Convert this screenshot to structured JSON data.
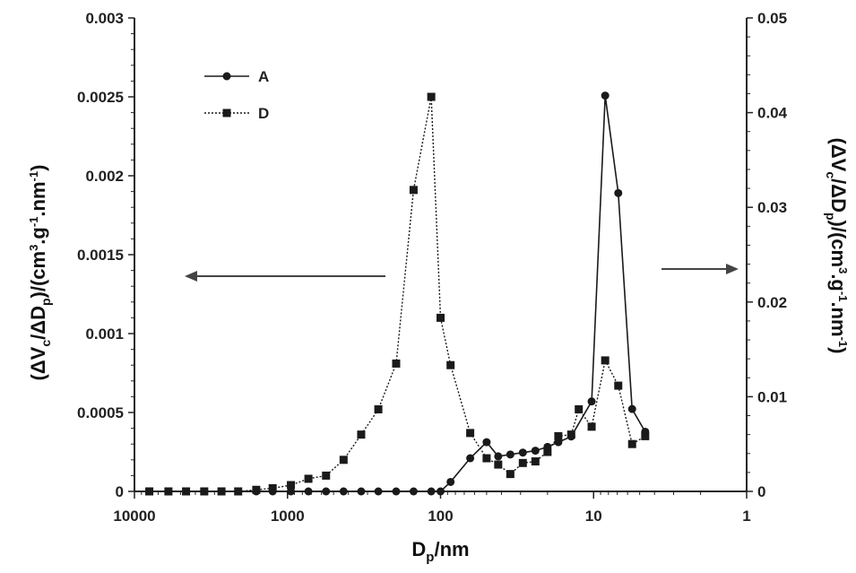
{
  "chart_data": {
    "type": "line",
    "x_axis": {
      "label": "D",
      "label_sub": "p",
      "label_suffix": "/nm",
      "scale": "log",
      "reversed": true,
      "range": [
        10000,
        1
      ],
      "ticks": [
        10000,
        1000,
        100,
        10,
        1
      ],
      "tick_labels": [
        "10000",
        "1000",
        "100",
        "10",
        "1"
      ]
    },
    "y_left": {
      "label_parts": [
        {
          "t": "(ΔV"
        },
        {
          "t": "c",
          "s": "sub"
        },
        {
          "t": "/ΔD"
        },
        {
          "t": "p",
          "s": "sub"
        },
        {
          "t": ")/(cm"
        },
        {
          "t": "3",
          "s": "sup"
        },
        {
          "t": ".g"
        },
        {
          "t": "-1",
          "s": "sup"
        },
        {
          "t": ".nm"
        },
        {
          "t": "-1",
          "s": "sup"
        },
        {
          "t": ")"
        }
      ],
      "range": [
        0,
        0.003
      ],
      "ticks": [
        0,
        0.0005,
        0.001,
        0.0015,
        0.002,
        0.0025,
        0.003
      ],
      "tick_labels": [
        "0",
        "0.0005",
        "0.001",
        "0.0015",
        "0.002",
        "0.0025",
        "0.003"
      ]
    },
    "y_right": {
      "label_parts": [
        {
          "t": "(ΔV"
        },
        {
          "t": "c",
          "s": "sub"
        },
        {
          "t": "/ΔD"
        },
        {
          "t": "p",
          "s": "sub"
        },
        {
          "t": ")/(cm"
        },
        {
          "t": "3",
          "s": "sup"
        },
        {
          "t": ".g"
        },
        {
          "t": "-1",
          "s": "sup"
        },
        {
          "t": ".nm"
        },
        {
          "t": "-1",
          "s": "sup"
        },
        {
          "t": ")"
        }
      ],
      "range": [
        0,
        0.05
      ],
      "ticks": [
        0,
        0.01,
        0.02,
        0.03,
        0.04,
        0.05
      ],
      "tick_labels": [
        "0",
        "0.01",
        "0.02",
        "0.03",
        "0.04",
        "0.05"
      ]
    },
    "legend": {
      "placement": "top-left"
    },
    "grid": false,
    "annotations": [
      {
        "type": "arrow",
        "direction": "left",
        "meaning": "series D uses left axis"
      },
      {
        "type": "arrow",
        "direction": "right",
        "meaning": "series A uses right axis"
      }
    ],
    "series": [
      {
        "name": "A",
        "axis": "right",
        "marker": "circle",
        "line": "solid",
        "color": "#1a1a1a",
        "x": [
          8000,
          6000,
          4600,
          3500,
          2700,
          2100,
          1600,
          1250,
          950,
          730,
          560,
          430,
          330,
          255,
          195,
          150,
          115,
          100,
          86,
          64,
          50,
          42,
          35,
          29,
          24,
          20,
          17,
          14,
          10.3,
          8.4,
          6.9,
          5.6,
          4.6
        ],
        "y": [
          0,
          0,
          0,
          0,
          0,
          0,
          0,
          0,
          0,
          0,
          0,
          0,
          0,
          0,
          0,
          0,
          0,
          0,
          0.001,
          0.0035,
          0.0052,
          0.0037,
          0.0039,
          0.0041,
          0.0043,
          0.0047,
          0.0052,
          0.0058,
          0.0095,
          0.0418,
          0.0315,
          0.0087,
          0.0063
        ]
      },
      {
        "name": "D",
        "axis": "left",
        "marker": "square",
        "line": "dotted",
        "color": "#1a1a1a",
        "x": [
          8000,
          6000,
          4600,
          3500,
          2700,
          2100,
          1600,
          1250,
          950,
          730,
          560,
          430,
          330,
          255,
          195,
          150,
          115,
          100,
          86,
          64,
          50,
          42,
          35,
          29,
          24,
          20,
          17,
          14,
          12.5,
          10.3,
          8.4,
          6.9,
          5.6,
          4.6
        ],
        "y": [
          0,
          0,
          0,
          0,
          0,
          0,
          1e-05,
          2e-05,
          4e-05,
          8e-05,
          0.0001,
          0.0002,
          0.00036,
          0.00052,
          0.00081,
          0.00191,
          0.0025,
          0.0011,
          0.0008,
          0.00037,
          0.00021,
          0.00017,
          0.00011,
          0.00018,
          0.00019,
          0.00025,
          0.00035,
          0.00036,
          0.00052,
          0.00041,
          0.00083,
          0.00067,
          0.0003,
          0.00035
        ]
      }
    ]
  }
}
